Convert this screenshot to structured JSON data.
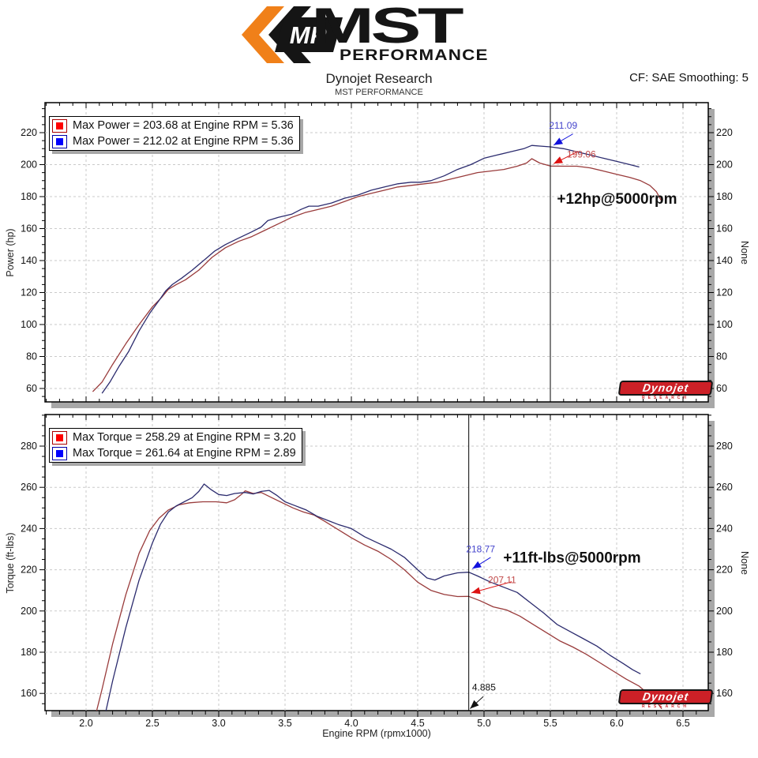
{
  "header": {
    "logo": {
      "mp": "MP",
      "mst": "MST",
      "performance": "PERFORMANCE"
    },
    "title": "Dynojet Research",
    "subtitle": "MST PERFORMANCE",
    "smoothing": "CF: SAE Smoothing: 5"
  },
  "dynojet_logo": {
    "text": "Dynojet",
    "sub": "RESEARCH"
  },
  "colors": {
    "red_curve": "#993b3b",
    "blue_curve": "#2b2b6e",
    "grid": "#cacaca",
    "shadow": "#a8a8a8",
    "accent_orange": "#f08019",
    "dynojet_red": "#cc2027",
    "legend_red": "#ff0000",
    "legend_blue": "#0000ff"
  },
  "chart_data": [
    {
      "type": "line",
      "name": "power",
      "ylabel_left": "Power (hp)",
      "ylabel_right": "None",
      "xlabel": "",
      "xlim": [
        1.69,
        6.69
      ],
      "ylim": [
        51.6,
        238.8
      ],
      "xticks": [
        "2.0",
        "2.5",
        "3.0",
        "3.5",
        "4.0",
        "4.5",
        "5.0",
        "5.5",
        "6.0",
        "6.5"
      ],
      "show_xtick_labels": false,
      "yticks": [
        60,
        80,
        100,
        120,
        140,
        160,
        180,
        200,
        220
      ],
      "grid": true,
      "legend_position": "top-left",
      "legend": [
        {
          "swatch": "#ff0000",
          "border": "#aa0000",
          "label": "Max Power = 203.68 at Engine RPM = 5.36"
        },
        {
          "swatch": "#0000ff",
          "border": "#0000aa",
          "label": "Max Power = 212.02 at Engine RPM = 5.36"
        }
      ],
      "cursor_x": 5.5,
      "annotations": [
        {
          "text": "211.09",
          "color": "#4444cc",
          "size": 12,
          "bold": false,
          "x": 5.49,
          "y": 222.5,
          "arrow": {
            "x1": 5.67,
            "y1": 219.2,
            "x2": 5.525,
            "y2": 212.2,
            "color": "#1111dd"
          }
        },
        {
          "text": "199.06",
          "color": "#c04848",
          "size": 12,
          "bold": false,
          "x": 5.625,
          "y": 204.5,
          "arrow": {
            "x1": 5.71,
            "y1": 208.3,
            "x2": 5.525,
            "y2": 200.6,
            "color": "#dd1111"
          }
        },
        {
          "text": "+12hp@5000rpm",
          "color": "#111111",
          "size": 19,
          "bold": true,
          "x": 5.55,
          "y": 175.5,
          "arrow": null
        }
      ],
      "series": [
        {
          "name": "baseline-red",
          "color": "#993b3b",
          "points": [
            [
              2.05,
              58
            ],
            [
              2.12,
              64
            ],
            [
              2.2,
              75
            ],
            [
              2.3,
              88
            ],
            [
              2.4,
              100
            ],
            [
              2.5,
              111
            ],
            [
              2.57,
              117
            ],
            [
              2.62,
              122
            ],
            [
              2.68,
              125
            ],
            [
              2.75,
              128
            ],
            [
              2.85,
              134
            ],
            [
              2.95,
              142
            ],
            [
              3.05,
              148
            ],
            [
              3.15,
              152
            ],
            [
              3.25,
              155
            ],
            [
              3.35,
              159
            ],
            [
              3.45,
              163
            ],
            [
              3.55,
              167
            ],
            [
              3.65,
              170
            ],
            [
              3.75,
              172
            ],
            [
              3.85,
              174
            ],
            [
              3.95,
              177
            ],
            [
              4.05,
              180
            ],
            [
              4.15,
              182
            ],
            [
              4.25,
              184
            ],
            [
              4.35,
              186
            ],
            [
              4.45,
              187
            ],
            [
              4.55,
              188
            ],
            [
              4.65,
              189
            ],
            [
              4.75,
              191
            ],
            [
              4.85,
              193
            ],
            [
              4.95,
              195
            ],
            [
              5.05,
              196
            ],
            [
              5.15,
              197
            ],
            [
              5.25,
              199
            ],
            [
              5.32,
              201
            ],
            [
              5.36,
              203.7
            ],
            [
              5.42,
              201
            ],
            [
              5.5,
              199.1
            ],
            [
              5.6,
              199
            ],
            [
              5.7,
              199
            ],
            [
              5.8,
              198
            ],
            [
              5.9,
              196
            ],
            [
              6.0,
              194
            ],
            [
              6.1,
              192
            ],
            [
              6.18,
              190
            ],
            [
              6.25,
              187
            ],
            [
              6.3,
              183
            ],
            [
              6.34,
              177
            ]
          ]
        },
        {
          "name": "mst-blue",
          "color": "#2b2b6e",
          "points": [
            [
              2.12,
              57
            ],
            [
              2.18,
              64
            ],
            [
              2.25,
              74
            ],
            [
              2.32,
              83
            ],
            [
              2.4,
              96
            ],
            [
              2.48,
              107
            ],
            [
              2.55,
              115
            ],
            [
              2.6,
              121
            ],
            [
              2.65,
              125
            ],
            [
              2.72,
              129
            ],
            [
              2.8,
              134
            ],
            [
              2.9,
              141
            ],
            [
              2.97,
              146
            ],
            [
              3.05,
              150
            ],
            [
              3.15,
              154
            ],
            [
              3.25,
              158
            ],
            [
              3.32,
              161
            ],
            [
              3.37,
              165
            ],
            [
              3.45,
              167
            ],
            [
              3.55,
              169
            ],
            [
              3.62,
              172
            ],
            [
              3.68,
              174
            ],
            [
              3.75,
              174
            ],
            [
              3.85,
              176
            ],
            [
              3.95,
              179
            ],
            [
              4.05,
              181
            ],
            [
              4.15,
              184
            ],
            [
              4.25,
              186
            ],
            [
              4.35,
              188
            ],
            [
              4.45,
              189
            ],
            [
              4.52,
              189
            ],
            [
              4.6,
              190
            ],
            [
              4.7,
              193
            ],
            [
              4.8,
              197
            ],
            [
              4.9,
              200
            ],
            [
              5.0,
              204
            ],
            [
              5.1,
              206
            ],
            [
              5.2,
              208
            ],
            [
              5.3,
              210
            ],
            [
              5.36,
              212
            ],
            [
              5.42,
              211.6
            ],
            [
              5.5,
              211.1
            ],
            [
              5.6,
              210
            ],
            [
              5.7,
              208
            ],
            [
              5.8,
              206
            ],
            [
              5.9,
              204
            ],
            [
              6.0,
              202
            ],
            [
              6.1,
              200
            ],
            [
              6.17,
              198.5
            ]
          ]
        }
      ]
    },
    {
      "type": "line",
      "name": "torque",
      "ylabel_left": "Torque (ft-lbs)",
      "ylabel_right": "None",
      "xlabel": "Engine RPM (rpmx1000)",
      "xlim": [
        1.69,
        6.69
      ],
      "ylim": [
        151.6,
        295.3
      ],
      "xticks": [
        "2.0",
        "2.5",
        "3.0",
        "3.5",
        "4.0",
        "4.5",
        "5.0",
        "5.5",
        "6.0",
        "6.5"
      ],
      "show_xtick_labels": true,
      "yticks": [
        160,
        180,
        200,
        220,
        240,
        260,
        280
      ],
      "grid": true,
      "legend_position": "top-left",
      "legend": [
        {
          "swatch": "#ff0000",
          "border": "#aa0000",
          "label": "Max Torque = 258.29 at Engine RPM = 3.20"
        },
        {
          "swatch": "#0000ff",
          "border": "#0000aa",
          "label": "Max Torque = 261.64 at Engine RPM = 2.89"
        }
      ],
      "cursor_x": 4.885,
      "annotations": [
        {
          "text": "218.77",
          "color": "#4444cc",
          "size": 12,
          "bold": false,
          "x": 4.865,
          "y": 228.5,
          "arrow": {
            "x1": 5.05,
            "y1": 226.0,
            "x2": 4.912,
            "y2": 220.5,
            "color": "#1111dd"
          }
        },
        {
          "text": "207.11",
          "color": "#c04848",
          "size": 12,
          "bold": false,
          "x": 5.03,
          "y": 213.5,
          "arrow": {
            "x1": 5.21,
            "y1": 214.2,
            "x2": 4.905,
            "y2": 208.8,
            "color": "#dd1111"
          }
        },
        {
          "text": "+11ft-lbs@5000rpm",
          "color": "#111111",
          "size": 19,
          "bold": true,
          "x": 5.145,
          "y": 223.5,
          "arrow": null
        },
        {
          "text": "4.885",
          "color": "#111111",
          "size": 12,
          "bold": false,
          "x": 4.91,
          "y": 161.5,
          "arrow": {
            "x1": 4.995,
            "y1": 158.5,
            "x2": 4.895,
            "y2": 152.6,
            "color": "#111111"
          }
        }
      ],
      "series": [
        {
          "name": "baseline-red",
          "color": "#993b3b",
          "points": [
            [
              2.05,
              144
            ],
            [
              2.12,
              162
            ],
            [
              2.2,
              184
            ],
            [
              2.3,
              208
            ],
            [
              2.4,
              228
            ],
            [
              2.48,
              239
            ],
            [
              2.55,
              245
            ],
            [
              2.62,
              249
            ],
            [
              2.7,
              251.5
            ],
            [
              2.78,
              252.5
            ],
            [
              2.88,
              253
            ],
            [
              2.98,
              253
            ],
            [
              3.06,
              252.5
            ],
            [
              3.12,
              254
            ],
            [
              3.17,
              256.5
            ],
            [
              3.2,
              258.3
            ],
            [
              3.26,
              257
            ],
            [
              3.32,
              257.5
            ],
            [
              3.4,
              255
            ],
            [
              3.48,
              252.5
            ],
            [
              3.56,
              250
            ],
            [
              3.64,
              248
            ],
            [
              3.72,
              246.5
            ],
            [
              3.8,
              243.5
            ],
            [
              3.9,
              239.5
            ],
            [
              4.0,
              235.5
            ],
            [
              4.1,
              232
            ],
            [
              4.2,
              229
            ],
            [
              4.3,
              225
            ],
            [
              4.4,
              220
            ],
            [
              4.5,
              214
            ],
            [
              4.6,
              210
            ],
            [
              4.7,
              208
            ],
            [
              4.8,
              207
            ],
            [
              4.885,
              207.1
            ],
            [
              4.97,
              205
            ],
            [
              5.07,
              202
            ],
            [
              5.17,
              200.5
            ],
            [
              5.27,
              197.5
            ],
            [
              5.37,
              193.5
            ],
            [
              5.47,
              189.5
            ],
            [
              5.57,
              185.5
            ],
            [
              5.67,
              182.5
            ],
            [
              5.77,
              179
            ],
            [
              5.87,
              175
            ],
            [
              5.97,
              171
            ],
            [
              6.07,
              167
            ],
            [
              6.17,
              163.5
            ],
            [
              6.25,
              159
            ],
            [
              6.3,
              156
            ],
            [
              6.34,
              152.5
            ]
          ]
        },
        {
          "name": "mst-blue",
          "color": "#2b2b6e",
          "points": [
            [
              2.12,
              143
            ],
            [
              2.2,
              166
            ],
            [
              2.3,
              192
            ],
            [
              2.4,
              215
            ],
            [
              2.5,
              233
            ],
            [
              2.56,
              242
            ],
            [
              2.62,
              248
            ],
            [
              2.68,
              251
            ],
            [
              2.74,
              253
            ],
            [
              2.8,
              255
            ],
            [
              2.85,
              258
            ],
            [
              2.89,
              261.6
            ],
            [
              2.94,
              259
            ],
            [
              3.0,
              256.5
            ],
            [
              3.06,
              256
            ],
            [
              3.12,
              257
            ],
            [
              3.2,
              257.5
            ],
            [
              3.26,
              256.8
            ],
            [
              3.32,
              258
            ],
            [
              3.38,
              258.5
            ],
            [
              3.44,
              256
            ],
            [
              3.5,
              253
            ],
            [
              3.58,
              251
            ],
            [
              3.66,
              249
            ],
            [
              3.74,
              246
            ],
            [
              3.82,
              244
            ],
            [
              3.9,
              242
            ],
            [
              4.0,
              240
            ],
            [
              4.1,
              236
            ],
            [
              4.2,
              233
            ],
            [
              4.3,
              230
            ],
            [
              4.4,
              226
            ],
            [
              4.5,
              220
            ],
            [
              4.57,
              216
            ],
            [
              4.63,
              215
            ],
            [
              4.7,
              217
            ],
            [
              4.8,
              218.5
            ],
            [
              4.885,
              218.8
            ],
            [
              4.95,
              217
            ],
            [
              5.05,
              214
            ],
            [
              5.15,
              211.5
            ],
            [
              5.25,
              209
            ],
            [
              5.35,
              204
            ],
            [
              5.45,
              199
            ],
            [
              5.55,
              193.5
            ],
            [
              5.65,
              190
            ],
            [
              5.75,
              186.5
            ],
            [
              5.85,
              183
            ],
            [
              5.95,
              178.5
            ],
            [
              6.05,
              174.5
            ],
            [
              6.12,
              171.5
            ],
            [
              6.18,
              169.5
            ]
          ]
        }
      ]
    }
  ]
}
